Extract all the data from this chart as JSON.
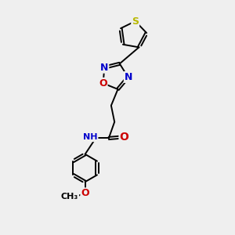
{
  "background_color": "#efefef",
  "atom_colors": {
    "C": "#000000",
    "N": "#0000cc",
    "O": "#cc0000",
    "S": "#b8b800",
    "H": "#888888"
  },
  "bond_color": "#000000",
  "figsize": [
    3.0,
    3.0
  ],
  "dpi": 100,
  "lw": 1.4,
  "font_size": 9
}
